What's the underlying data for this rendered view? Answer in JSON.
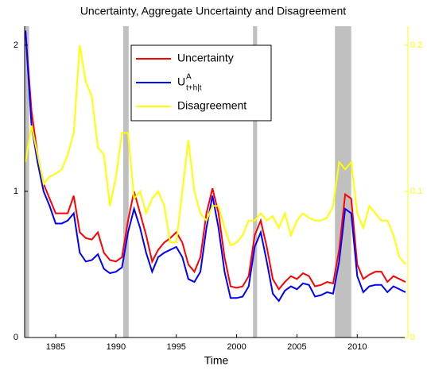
{
  "chart_data": {
    "type": "line",
    "title": "Uncertainty, Aggregate Uncertainty and Disagreement",
    "x_label": "Time",
    "x": [
      1982.5,
      1983,
      1983.5,
      1984,
      1984.5,
      1985,
      1985.5,
      1986,
      1986.5,
      1987,
      1987.5,
      1988,
      1988.5,
      1989,
      1989.5,
      1990,
      1990.5,
      1991,
      1991.5,
      1992,
      1992.5,
      1993,
      1993.5,
      1994,
      1994.5,
      1995,
      1995.5,
      1996,
      1996.5,
      1997,
      1997.5,
      1998,
      1998.5,
      1999,
      1999.5,
      2000,
      2000.5,
      2001,
      2001.5,
      2002,
      2002.5,
      2003,
      2003.5,
      2004,
      2004.5,
      2005,
      2005.5,
      2006,
      2006.5,
      2007,
      2007.5,
      2008,
      2008.5,
      2009,
      2009.5,
      2010,
      2010.5,
      2011,
      2011.5,
      2012,
      2012.5,
      2013,
      2013.5,
      2014
    ],
    "series": [
      {
        "name": "Uncertainty",
        "color": "#ff0000",
        "axis": "y",
        "values": [
          2.1,
          1.55,
          1.25,
          1.05,
          0.95,
          0.85,
          0.85,
          0.85,
          0.97,
          0.72,
          0.68,
          0.67,
          0.72,
          0.58,
          0.53,
          0.52,
          0.55,
          0.8,
          1.0,
          0.85,
          0.7,
          0.52,
          0.6,
          0.65,
          0.68,
          0.72,
          0.65,
          0.5,
          0.45,
          0.55,
          0.85,
          1.02,
          0.85,
          0.55,
          0.35,
          0.34,
          0.35,
          0.42,
          0.7,
          0.8,
          0.62,
          0.4,
          0.33,
          0.38,
          0.42,
          0.4,
          0.44,
          0.42,
          0.35,
          0.36,
          0.38,
          0.37,
          0.6,
          0.98,
          0.95,
          0.5,
          0.4,
          0.43,
          0.45,
          0.45,
          0.38,
          0.42,
          0.4,
          0.38
        ]
      },
      {
        "name": "U",
        "name_superscript": "A",
        "name_subscript": "t+h|t",
        "color": "#0000ff",
        "axis": "y",
        "values": [
          2.1,
          1.45,
          1.2,
          1.0,
          0.9,
          0.78,
          0.78,
          0.8,
          0.85,
          0.58,
          0.52,
          0.53,
          0.57,
          0.47,
          0.44,
          0.45,
          0.48,
          0.72,
          0.88,
          0.75,
          0.58,
          0.45,
          0.55,
          0.58,
          0.6,
          0.62,
          0.55,
          0.4,
          0.38,
          0.45,
          0.75,
          0.97,
          0.75,
          0.45,
          0.27,
          0.27,
          0.28,
          0.35,
          0.62,
          0.72,
          0.52,
          0.3,
          0.25,
          0.32,
          0.35,
          0.33,
          0.37,
          0.36,
          0.28,
          0.29,
          0.31,
          0.3,
          0.52,
          0.88,
          0.85,
          0.42,
          0.31,
          0.35,
          0.36,
          0.36,
          0.31,
          0.35,
          0.33,
          0.31
        ]
      },
      {
        "name": "Disagreement",
        "color": "#ffff00",
        "axis": "y2",
        "values": [
          0.12,
          0.145,
          0.125,
          0.105,
          0.11,
          0.112,
          0.115,
          0.125,
          0.14,
          0.2,
          0.175,
          0.165,
          0.13,
          0.125,
          0.09,
          0.11,
          0.14,
          0.14,
          0.095,
          0.1,
          0.085,
          0.095,
          0.1,
          0.09,
          0.065,
          0.065,
          0.1,
          0.135,
          0.1,
          0.085,
          0.08,
          0.09,
          0.09,
          0.075,
          0.063,
          0.065,
          0.07,
          0.08,
          0.08,
          0.085,
          0.08,
          0.083,
          0.075,
          0.085,
          0.07,
          0.08,
          0.085,
          0.082,
          0.08,
          0.08,
          0.082,
          0.09,
          0.12,
          0.115,
          0.12,
          0.085,
          0.075,
          0.09,
          0.085,
          0.08,
          0.08,
          0.07,
          0.055,
          0.05
        ]
      }
    ],
    "shaded_regions": [
      [
        1982.43,
        1982.8
      ],
      [
        1990.6,
        1991.05
      ],
      [
        2001.36,
        2001.7
      ],
      [
        2008.15,
        2009.5
      ]
    ],
    "shade_color": "#c0c0c0",
    "xlim": [
      1982.43,
      2014.2
    ],
    "xticks": [
      1985,
      1990,
      1995,
      2000,
      2005,
      2010
    ],
    "ylim": [
      0,
      2.13
    ],
    "yticks": [
      0,
      1,
      2
    ],
    "y2lim": [
      0,
      0.213
    ],
    "y2ticks": [
      0,
      0.1,
      0.2
    ],
    "y2_color": "#ffff00",
    "legend": "top-center"
  }
}
